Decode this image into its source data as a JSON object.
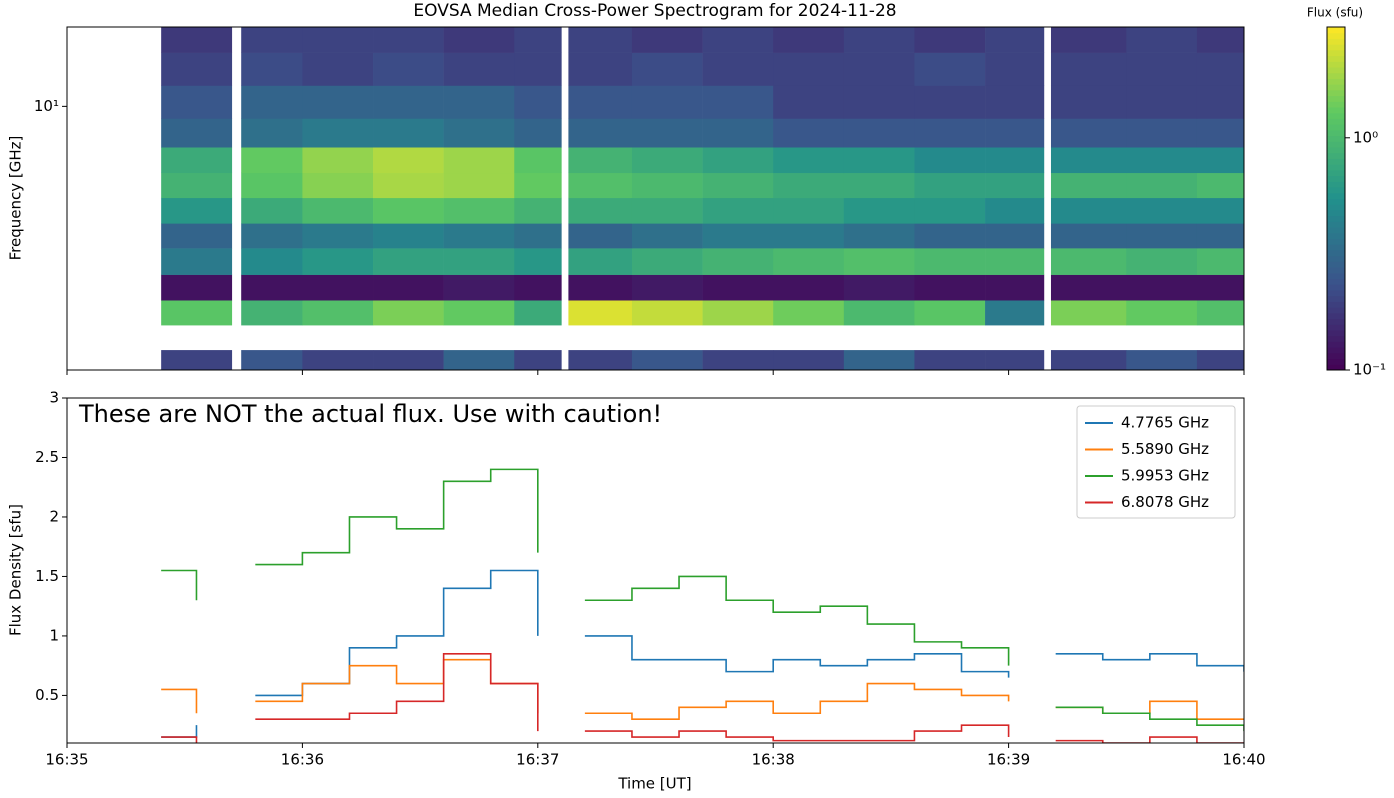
{
  "chart_data": [
    {
      "type": "heatmap",
      "title": "EOVSA Median Cross-Power Spectrogram for 2024-11-28",
      "y_label": "Frequency [GHz]",
      "log_y": true,
      "colormap": "viridis",
      "xlim": [
        0,
        5
      ],
      "xticks": [
        0,
        1,
        2,
        3,
        4,
        5
      ],
      "ylim": [
        1,
        20
      ],
      "yticks": [
        {
          "value": 10,
          "label": "10¹"
        }
      ],
      "x": [
        0.4,
        0.7,
        0.74,
        1.0,
        1.3,
        1.6,
        1.9,
        2.1,
        2.13,
        2.4,
        2.7,
        3.0,
        3.3,
        3.6,
        3.9,
        4.15,
        4.18,
        4.5,
        4.8,
        5.0
      ],
      "y": [
        1.0,
        1.19,
        1.48,
        1.84,
        2.3,
        2.9,
        3.6,
        4.5,
        5.6,
        7,
        9,
        12,
        16,
        20
      ],
      "z": [
        [
          0.2,
          null,
          0.25,
          0.2,
          0.2,
          0.3,
          0.2,
          null,
          0.2,
          0.25,
          0.2,
          0.2,
          0.3,
          0.2,
          0.2,
          null,
          0.2,
          0.25,
          0.2
        ],
        [
          null,
          null,
          null,
          null,
          null,
          null,
          null,
          null,
          null,
          null,
          null,
          null,
          null,
          null,
          null,
          null,
          null,
          null,
          null
        ],
        [
          1.2,
          null,
          0.9,
          1.1,
          1.5,
          1.3,
          0.8,
          null,
          2.5,
          2.2,
          1.8,
          1.4,
          1.0,
          1.2,
          0.4,
          null,
          1.5,
          1.3,
          1.1
        ],
        [
          0.12,
          null,
          0.12,
          0.12,
          0.12,
          0.13,
          0.12,
          null,
          0.12,
          0.13,
          0.12,
          0.12,
          0.13,
          0.12,
          0.12,
          null,
          0.12,
          0.12,
          0.12
        ],
        [
          0.4,
          null,
          0.5,
          0.6,
          0.7,
          0.7,
          0.6,
          null,
          0.7,
          0.8,
          0.9,
          1.0,
          1.1,
          1.0,
          1.0,
          null,
          1.0,
          0.9,
          1.0
        ],
        [
          0.3,
          null,
          0.35,
          0.4,
          0.45,
          0.4,
          0.35,
          null,
          0.3,
          0.35,
          0.4,
          0.4,
          0.35,
          0.3,
          0.3,
          null,
          0.3,
          0.3,
          0.3
        ],
        [
          0.6,
          null,
          0.8,
          1.0,
          1.2,
          1.1,
          0.9,
          null,
          0.8,
          0.8,
          0.7,
          0.7,
          0.6,
          0.6,
          0.5,
          null,
          0.5,
          0.5,
          0.5
        ],
        [
          0.9,
          null,
          1.2,
          1.6,
          1.9,
          1.8,
          1.3,
          null,
          1.1,
          1.0,
          0.9,
          0.8,
          0.8,
          0.7,
          0.7,
          null,
          0.9,
          0.9,
          1.0
        ],
        [
          0.8,
          null,
          1.3,
          1.7,
          2.0,
          1.8,
          1.2,
          null,
          0.9,
          0.8,
          0.7,
          0.6,
          0.6,
          0.5,
          0.5,
          null,
          0.5,
          0.5,
          0.5
        ],
        [
          0.3,
          null,
          0.35,
          0.4,
          0.4,
          0.35,
          0.3,
          null,
          0.3,
          0.3,
          0.3,
          0.25,
          0.25,
          0.25,
          0.25,
          null,
          0.25,
          0.25,
          0.25
        ],
        [
          0.25,
          null,
          0.3,
          0.3,
          0.3,
          0.3,
          0.25,
          null,
          0.25,
          0.25,
          0.25,
          0.2,
          0.2,
          0.2,
          0.2,
          null,
          0.2,
          0.2,
          0.2
        ],
        [
          0.2,
          null,
          0.22,
          0.2,
          0.22,
          0.2,
          0.2,
          null,
          0.2,
          0.22,
          0.2,
          0.2,
          0.2,
          0.22,
          0.2,
          null,
          0.2,
          0.2,
          0.2
        ],
        [
          0.18,
          null,
          0.2,
          0.2,
          0.2,
          0.18,
          0.2,
          null,
          0.2,
          0.18,
          0.2,
          0.18,
          0.2,
          0.18,
          0.2,
          null,
          0.18,
          0.2,
          0.18
        ]
      ],
      "colorbar_label": "Flux (sfu)",
      "clim": [
        0.1,
        3
      ],
      "cticks": [
        {
          "value": 0.1,
          "label": "10⁻¹"
        },
        {
          "value": 1,
          "label": "10⁰"
        }
      ]
    },
    {
      "type": "line",
      "x_label": "Time [UT]",
      "y_label": "Flux Density [sfu]",
      "annotation": "These are NOT the actual flux. Use with caution!",
      "legend": "upper right",
      "xlim": [
        0,
        5
      ],
      "xticks": [
        {
          "value": 0,
          "label": "16:35"
        },
        {
          "value": 1,
          "label": "16:36"
        },
        {
          "value": 2,
          "label": "16:37"
        },
        {
          "value": 3,
          "label": "16:38"
        },
        {
          "value": 4,
          "label": "16:39"
        },
        {
          "value": 5,
          "label": "16:40"
        }
      ],
      "ylim": [
        0.1,
        3.0
      ],
      "yticks": [
        0.5,
        1.0,
        1.5,
        2.0,
        2.5,
        3.0
      ],
      "x": [
        0.4,
        0.55,
        0.72,
        0.8,
        1.0,
        1.2,
        1.4,
        1.6,
        1.8,
        2.0,
        2.12,
        2.2,
        2.4,
        2.6,
        2.8,
        3.0,
        3.2,
        3.4,
        3.6,
        3.8,
        4.0,
        4.17,
        4.2,
        4.4,
        4.6,
        4.8,
        5.0
      ],
      "series": [
        {
          "name": "4.7765 GHz",
          "color": "#1f77b4",
          "values": [
            0.15,
            0.25,
            null,
            0.5,
            0.6,
            0.9,
            1.0,
            1.4,
            1.55,
            1.0,
            null,
            1.0,
            0.8,
            0.8,
            0.7,
            0.8,
            0.75,
            0.8,
            0.85,
            0.7,
            0.65,
            null,
            0.85,
            0.8,
            0.85,
            0.75,
            0.7
          ]
        },
        {
          "name": "5.5890 GHz",
          "color": "#ff7f0e",
          "values": [
            0.55,
            0.35,
            null,
            0.45,
            0.6,
            0.75,
            0.6,
            0.8,
            0.6,
            0.35,
            null,
            0.35,
            0.3,
            0.4,
            0.45,
            0.35,
            0.45,
            0.6,
            0.55,
            0.5,
            0.45,
            null,
            0.4,
            0.35,
            0.45,
            0.3,
            0.3
          ]
        },
        {
          "name": "5.9953 GHz",
          "color": "#2ca02c",
          "values": [
            1.55,
            1.3,
            null,
            1.6,
            1.7,
            2.0,
            1.9,
            2.3,
            2.4,
            1.7,
            null,
            1.3,
            1.4,
            1.5,
            1.3,
            1.2,
            1.25,
            1.1,
            0.95,
            0.9,
            0.75,
            null,
            0.4,
            0.35,
            0.3,
            0.25,
            0.2
          ]
        },
        {
          "name": "6.8078 GHz",
          "color": "#d62728",
          "values": [
            0.15,
            0.1,
            null,
            0.3,
            0.3,
            0.35,
            0.45,
            0.85,
            0.6,
            0.2,
            null,
            0.2,
            0.15,
            0.2,
            0.15,
            0.12,
            0.12,
            0.12,
            0.2,
            0.25,
            0.15,
            null,
            0.12,
            0.1,
            0.15,
            0.1,
            0.1
          ]
        }
      ]
    }
  ]
}
